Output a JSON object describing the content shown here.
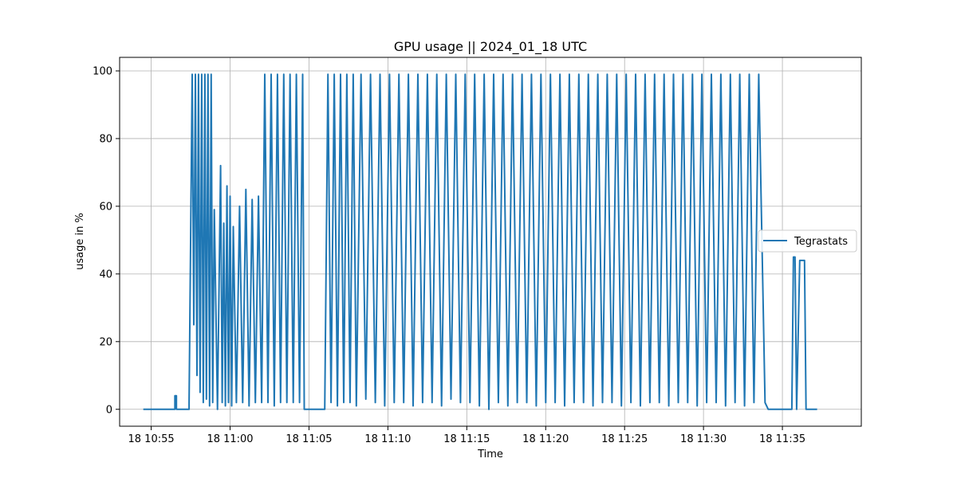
{
  "chart_data": {
    "type": "line",
    "title": "GPU usage ||  2024_01_18 UTC",
    "xlabel": "Time",
    "ylabel": "usage in %",
    "x_unit": "minutes past 18 10:00 UTC",
    "xlim": [
      53.0,
      40.0
    ],
    "xlim_note": "",
    "xlim_minutes": [
      93.0,
      140.0
    ],
    "ylim": [
      -5,
      104
    ],
    "x_ticks": [
      {
        "value": 55,
        "label": "18 10:55"
      },
      {
        "value": 60,
        "label": "18 11:00"
      },
      {
        "value": 65,
        "label": "18 11:05"
      },
      {
        "value": 70,
        "label": "18 11:10"
      },
      {
        "value": 75,
        "label": "18 11:15"
      },
      {
        "value": 80,
        "label": "18 11:20"
      },
      {
        "value": 85,
        "label": "18 11:25"
      },
      {
        "value": 90,
        "label": "18 11:30"
      },
      {
        "value": 95,
        "label": "18 11:35"
      }
    ],
    "y_ticks": [
      0,
      20,
      40,
      60,
      80,
      100
    ],
    "grid": true,
    "legend_position": "center-right",
    "series": [
      {
        "name": "Tegrastats",
        "color": "#1f77b4",
        "x": [
          54.5,
          56.5,
          56.5,
          56.6,
          56.6,
          57.4,
          57.4,
          57.6,
          57.7,
          57.8,
          57.9,
          58.0,
          58.1,
          58.2,
          58.3,
          58.4,
          58.5,
          58.6,
          58.7,
          58.8,
          58.9,
          59.0,
          59.2,
          59.4,
          59.5,
          59.6,
          59.7,
          59.8,
          59.9,
          60.0,
          60.1,
          60.2,
          60.4,
          60.6,
          60.8,
          61.0,
          61.2,
          61.4,
          61.6,
          61.8,
          62.0,
          62.2,
          62.4,
          62.6,
          62.8,
          63.0,
          63.2,
          63.4,
          63.6,
          63.8,
          64.0,
          64.2,
          64.4,
          64.6,
          64.7,
          66.0,
          66.2,
          66.4,
          66.6,
          66.8,
          67.0,
          67.2,
          67.4,
          67.6,
          67.8,
          68.0,
          68.3,
          68.6,
          68.9,
          69.2,
          69.5,
          69.8,
          70.1,
          70.4,
          70.7,
          71.0,
          71.3,
          71.6,
          71.9,
          72.2,
          72.5,
          72.8,
          73.1,
          73.4,
          73.7,
          74.0,
          74.3,
          74.6,
          74.9,
          75.2,
          75.5,
          75.8,
          76.1,
          76.4,
          76.7,
          77.0,
          77.3,
          77.6,
          77.9,
          78.2,
          78.5,
          78.8,
          79.1,
          79.4,
          79.7,
          80.0,
          80.3,
          80.6,
          80.9,
          81.2,
          81.5,
          81.8,
          82.1,
          82.4,
          82.7,
          83.0,
          83.3,
          83.6,
          83.9,
          84.2,
          84.5,
          84.8,
          85.1,
          85.4,
          85.7,
          86.0,
          86.3,
          86.6,
          86.9,
          87.2,
          87.5,
          87.8,
          88.1,
          88.4,
          88.7,
          89.0,
          89.3,
          89.6,
          89.9,
          90.2,
          90.5,
          90.8,
          91.1,
          91.4,
          91.7,
          92.0,
          92.3,
          92.6,
          92.9,
          93.2,
          93.5,
          93.9,
          94.1,
          94.4,
          95.6,
          95.7,
          95.8,
          95.9,
          96.1,
          96.3,
          96.4,
          96.5,
          96.6,
          97.2
        ],
        "y": [
          0,
          0,
          4,
          4,
          0,
          0,
          2,
          99,
          25,
          99,
          10,
          99,
          5,
          99,
          2,
          99,
          3,
          99,
          1,
          99,
          2,
          59,
          0,
          72,
          2,
          55,
          1,
          66,
          2,
          63,
          1,
          54,
          2,
          60,
          2,
          65,
          1,
          62,
          2,
          63,
          2,
          99,
          2,
          99,
          1,
          99,
          2,
          99,
          2,
          99,
          2,
          99,
          2,
          99,
          0,
          0,
          99,
          2,
          99,
          1,
          99,
          2,
          99,
          2,
          99,
          1,
          99,
          3,
          99,
          2,
          99,
          1,
          99,
          2,
          99,
          2,
          99,
          1,
          99,
          2,
          99,
          2,
          99,
          1,
          99,
          3,
          99,
          2,
          99,
          2,
          99,
          1,
          99,
          0,
          99,
          2,
          99,
          1,
          99,
          2,
          99,
          2,
          99,
          1,
          99,
          2,
          99,
          2,
          99,
          1,
          99,
          2,
          99,
          2,
          99,
          1,
          99,
          2,
          99,
          2,
          99,
          1,
          99,
          2,
          99,
          1,
          99,
          2,
          99,
          2,
          99,
          1,
          99,
          2,
          99,
          2,
          99,
          1,
          99,
          2,
          99,
          2,
          99,
          1,
          99,
          2,
          99,
          1,
          99,
          2,
          99,
          2,
          0,
          0,
          0,
          45,
          45,
          0,
          44,
          44,
          44,
          0,
          0,
          0
        ]
      }
    ]
  }
}
